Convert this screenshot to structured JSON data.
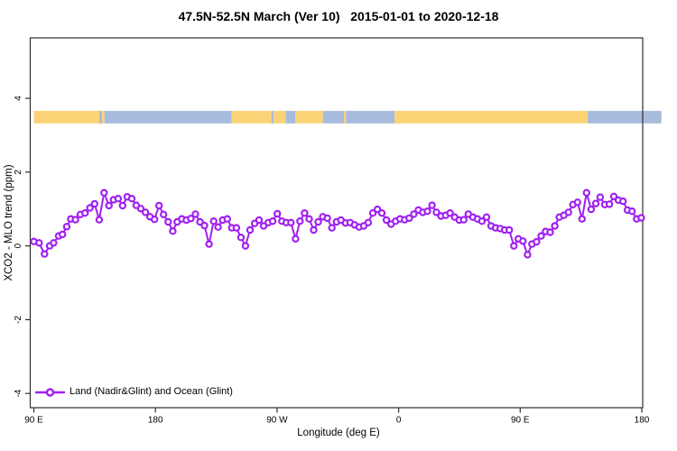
{
  "chart_data": {
    "type": "line",
    "title": "47.5N-52.5N March (Ver 10)   2015-01-01 to 2020-12-18",
    "xlabel": "Longitude (deg E)",
    "ylabel": "XCO2 - MLO trend (ppm)",
    "xlim": [
      90,
      540
    ],
    "ylim": [
      -4.4,
      5.6
    ],
    "grid": false,
    "legend_position": "bottom-left",
    "legend_label": "Land (Nadir&Glint) and Ocean (Glint)",
    "series_color": "#A020F0",
    "x_ticks": [
      {
        "lon": 90,
        "label": "90 E"
      },
      {
        "lon": 180,
        "label": "180"
      },
      {
        "lon": 270,
        "label": "90 W"
      },
      {
        "lon": 360,
        "label": "0"
      },
      {
        "lon": 450,
        "label": "90 E"
      },
      {
        "lon": 540,
        "label": "180"
      }
    ],
    "y_ticks": [
      {
        "value": -4,
        "label": "-4"
      },
      {
        "value": -2,
        "label": "-2"
      },
      {
        "value": 0,
        "label": "0"
      },
      {
        "value": 2,
        "label": "2"
      },
      {
        "value": 4,
        "label": "4"
      }
    ],
    "surface_band": {
      "value_range": [
        3.32,
        3.66
      ],
      "colors": {
        "land": "#FBD376",
        "ocean": "#A7BBDC"
      },
      "segments": [
        {
          "surface": "land",
          "from": 90,
          "to": 138.5
        },
        {
          "surface": "ocean",
          "from": 138.5,
          "to": 140.5
        },
        {
          "surface": "land",
          "from": 140.5,
          "to": 142.3
        },
        {
          "surface": "ocean",
          "from": 142.3,
          "to": 236.5
        },
        {
          "surface": "land",
          "from": 236.5,
          "to": 265.8
        },
        {
          "surface": "ocean",
          "from": 265.8,
          "to": 267.5
        },
        {
          "surface": "land",
          "from": 267.5,
          "to": 276.5
        },
        {
          "surface": "ocean",
          "from": 276.5,
          "to": 283.5
        },
        {
          "surface": "land",
          "from": 283.5,
          "to": 304
        },
        {
          "surface": "ocean",
          "from": 304,
          "to": 319.5
        },
        {
          "surface": "land",
          "from": 319.5,
          "to": 321
        },
        {
          "surface": "ocean",
          "from": 321,
          "to": 357
        },
        {
          "surface": "land",
          "from": 357,
          "to": 500
        },
        {
          "surface": "ocean",
          "from": 500,
          "to": 554.5
        }
      ]
    },
    "series": [
      {
        "name": "Land (Nadir&Glint) and Ocean (Glint)",
        "color": "#A020F0",
        "marker": "open-circle",
        "points": [
          [
            90,
            0.12
          ],
          [
            93.9,
            0.08
          ],
          [
            97.9,
            -0.22
          ],
          [
            101.7,
            0.0
          ],
          [
            104.6,
            0.08
          ],
          [
            108.4,
            0.27
          ],
          [
            111.2,
            0.31
          ],
          [
            114.3,
            0.52
          ],
          [
            117.3,
            0.73
          ],
          [
            120.8,
            0.71
          ],
          [
            124.4,
            0.85
          ],
          [
            127.9,
            0.89
          ],
          [
            131.5,
            1.03
          ],
          [
            135,
            1.14
          ],
          [
            138.4,
            0.71
          ],
          [
            142,
            1.44
          ],
          [
            145.6,
            1.09
          ],
          [
            149,
            1.25
          ],
          [
            152.4,
            1.28
          ],
          [
            155.7,
            1.09
          ],
          [
            159.1,
            1.33
          ],
          [
            162.5,
            1.28
          ],
          [
            165.8,
            1.1
          ],
          [
            169.2,
            1.01
          ],
          [
            172.6,
            0.91
          ],
          [
            175.9,
            0.79
          ],
          [
            179.3,
            0.72
          ],
          [
            182.7,
            1.09
          ],
          [
            186,
            0.85
          ],
          [
            189.4,
            0.65
          ],
          [
            192.8,
            0.4
          ],
          [
            196.1,
            0.65
          ],
          [
            199.5,
            0.73
          ],
          [
            202.9,
            0.7
          ],
          [
            206.2,
            0.74
          ],
          [
            209.6,
            0.86
          ],
          [
            213,
            0.65
          ],
          [
            216.3,
            0.55
          ],
          [
            219.7,
            0.05
          ],
          [
            223.1,
            0.67
          ],
          [
            226.4,
            0.51
          ],
          [
            229.8,
            0.7
          ],
          [
            233.2,
            0.73
          ],
          [
            236.5,
            0.49
          ],
          [
            239.9,
            0.49
          ],
          [
            243.3,
            0.23
          ],
          [
            246.6,
            0.0
          ],
          [
            250,
            0.43
          ],
          [
            253.4,
            0.61
          ],
          [
            256.7,
            0.7
          ],
          [
            260.1,
            0.54
          ],
          [
            263.5,
            0.63
          ],
          [
            266.8,
            0.67
          ],
          [
            270.2,
            0.87
          ],
          [
            273.6,
            0.67
          ],
          [
            276.9,
            0.63
          ],
          [
            280.3,
            0.63
          ],
          [
            283.7,
            0.19
          ],
          [
            287,
            0.67
          ],
          [
            290.4,
            0.89
          ],
          [
            293.8,
            0.73
          ],
          [
            297.1,
            0.43
          ],
          [
            300.5,
            0.65
          ],
          [
            303.9,
            0.79
          ],
          [
            307.2,
            0.75
          ],
          [
            310.6,
            0.49
          ],
          [
            314,
            0.65
          ],
          [
            317.3,
            0.7
          ],
          [
            320.7,
            0.62
          ],
          [
            324.1,
            0.63
          ],
          [
            327.4,
            0.57
          ],
          [
            330.8,
            0.51
          ],
          [
            334.2,
            0.54
          ],
          [
            337.5,
            0.63
          ],
          [
            340.9,
            0.89
          ],
          [
            344.3,
            0.99
          ],
          [
            347.6,
            0.89
          ],
          [
            351,
            0.7
          ],
          [
            354.4,
            0.59
          ],
          [
            357.7,
            0.67
          ],
          [
            361.1,
            0.73
          ],
          [
            364.5,
            0.71
          ],
          [
            367.8,
            0.75
          ],
          [
            371.2,
            0.86
          ],
          [
            374.6,
            0.97
          ],
          [
            377.9,
            0.91
          ],
          [
            381.3,
            0.94
          ],
          [
            384.7,
            1.1
          ],
          [
            388,
            0.91
          ],
          [
            391.4,
            0.81
          ],
          [
            394.8,
            0.83
          ],
          [
            398.1,
            0.89
          ],
          [
            401.5,
            0.78
          ],
          [
            404.9,
            0.7
          ],
          [
            408.2,
            0.71
          ],
          [
            411.6,
            0.86
          ],
          [
            415,
            0.78
          ],
          [
            418.3,
            0.73
          ],
          [
            421.7,
            0.67
          ],
          [
            425.1,
            0.78
          ],
          [
            428.4,
            0.54
          ],
          [
            431.8,
            0.49
          ],
          [
            435.2,
            0.47
          ],
          [
            438.5,
            0.43
          ],
          [
            441.9,
            0.43
          ],
          [
            445.3,
            0.0
          ],
          [
            448.6,
            0.19
          ],
          [
            452,
            0.13
          ],
          [
            455.4,
            -0.24
          ],
          [
            458.7,
            0.05
          ],
          [
            462.1,
            0.11
          ],
          [
            465.5,
            0.27
          ],
          [
            468.8,
            0.39
          ],
          [
            472.2,
            0.37
          ],
          [
            475.6,
            0.54
          ],
          [
            478.9,
            0.78
          ],
          [
            482.3,
            0.83
          ],
          [
            485.7,
            0.91
          ],
          [
            489,
            1.12
          ],
          [
            492.4,
            1.18
          ],
          [
            495.8,
            0.73
          ],
          [
            499.1,
            1.44
          ],
          [
            502.5,
            0.99
          ],
          [
            505.9,
            1.15
          ],
          [
            509.2,
            1.32
          ],
          [
            512.6,
            1.12
          ],
          [
            516,
            1.13
          ],
          [
            519.3,
            1.34
          ],
          [
            522.7,
            1.24
          ],
          [
            526.1,
            1.21
          ],
          [
            529.4,
            0.97
          ],
          [
            532.8,
            0.94
          ],
          [
            536.2,
            0.73
          ],
          [
            539.6,
            0.76
          ]
        ]
      }
    ]
  }
}
